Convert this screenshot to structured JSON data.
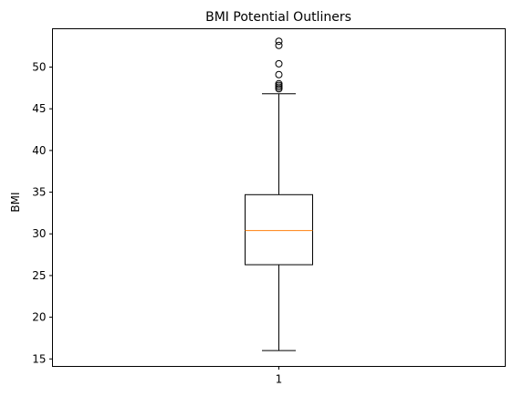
{
  "chart_data": {
    "type": "box",
    "title": "BMI Potential Outliners",
    "xlabel": "",
    "ylabel": "BMI",
    "categories": [
      "1"
    ],
    "ylim": [
      14.1,
      54.6
    ],
    "yticks": [
      15,
      20,
      25,
      30,
      35,
      40,
      45,
      50
    ],
    "boxes": [
      {
        "category": "1",
        "whisker_low": 16.0,
        "q1": 26.3,
        "median": 30.4,
        "q3": 34.7,
        "whisker_high": 46.8,
        "outliers": [
          47.4,
          47.6,
          47.8,
          48.0,
          49.1,
          50.4,
          52.6,
          53.1
        ]
      }
    ],
    "grid": false,
    "legend": "none",
    "colors": {
      "median": "#ff7f0e",
      "box": "#000000"
    }
  }
}
